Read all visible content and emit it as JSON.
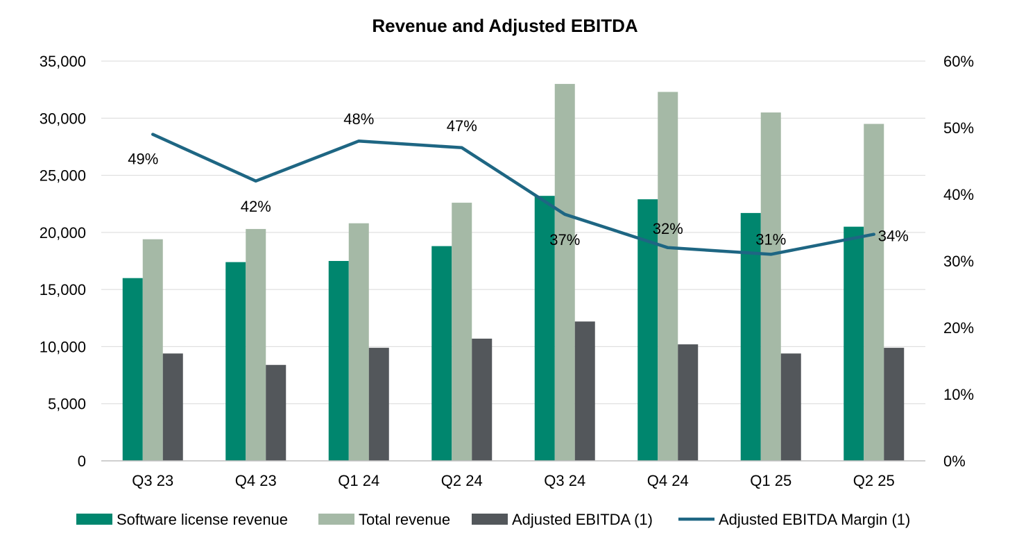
{
  "chart_data": {
    "type": "bar",
    "title": "Revenue and Adjusted EBITDA",
    "categories": [
      "Q3 23",
      "Q4 23",
      "Q1 24",
      "Q2 24",
      "Q3 24",
      "Q4 24",
      "Q1 25",
      "Q2 25"
    ],
    "series": [
      {
        "name": "Software license revenue",
        "kind": "bar",
        "axis": "left",
        "color": "#00866e",
        "values": [
          16000,
          17400,
          17500,
          18800,
          23200,
          22900,
          21700,
          20500
        ]
      },
      {
        "name": "Total revenue",
        "kind": "bar",
        "axis": "left",
        "color": "#a5b9a6",
        "values": [
          19400,
          20300,
          20800,
          22600,
          33000,
          32300,
          30500,
          29500
        ]
      },
      {
        "name": "Adjusted EBITDA (1)",
        "kind": "bar",
        "axis": "left",
        "color": "#53575b",
        "values": [
          9400,
          8400,
          9900,
          10700,
          12200,
          10200,
          9400,
          9900
        ]
      },
      {
        "name": "Adjusted EBITDA Margin (1)",
        "kind": "line",
        "axis": "right",
        "color": "#1e6683",
        "values": [
          49,
          42,
          48,
          47,
          37,
          32,
          31,
          34
        ],
        "labels": [
          "49%",
          "42%",
          "48%",
          "47%",
          "37%",
          "32%",
          "31%",
          "34%"
        ]
      }
    ],
    "y_left": {
      "min": 0,
      "max": 35000,
      "ticks": [
        0,
        5000,
        10000,
        15000,
        20000,
        25000,
        30000,
        35000
      ],
      "tick_labels": [
        "0",
        "5,000",
        "10,000",
        "15,000",
        "20,000",
        "25,000",
        "30,000",
        "35,000"
      ]
    },
    "y_right": {
      "min": 0,
      "max": 60,
      "ticks": [
        0,
        10,
        20,
        30,
        40,
        50,
        60
      ],
      "tick_labels": [
        "0%",
        "10%",
        "20%",
        "30%",
        "40%",
        "50%",
        "60%"
      ]
    },
    "grid": true,
    "legend_position": "bottom"
  }
}
